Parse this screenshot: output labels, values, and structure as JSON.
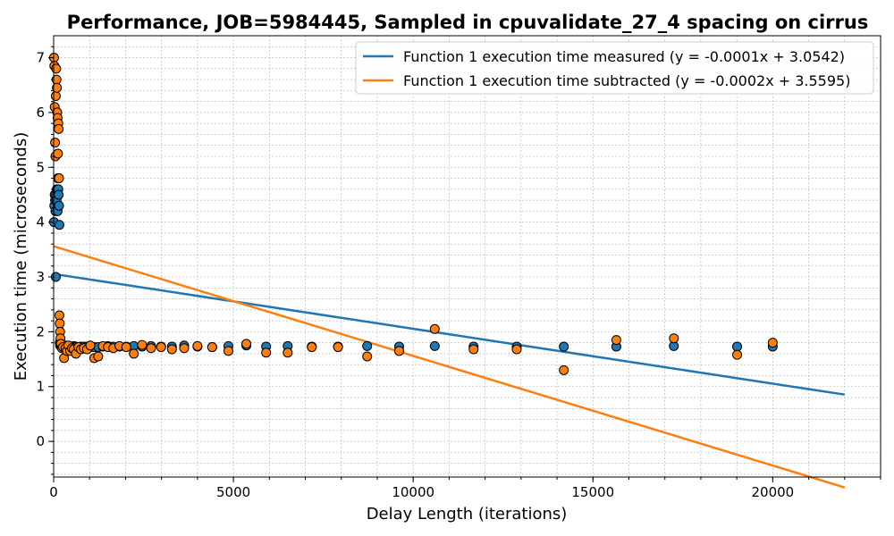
{
  "chart_data": {
    "type": "scatter",
    "title": "Performance, JOB=5984445, Sampled in cpuvalidate_27_4 spacing on cirrus",
    "xlabel": "Delay Length (iterations)",
    "ylabel": "Execution time (microseconds)",
    "xlim": [
      0,
      23000
    ],
    "ylim": [
      -0.65,
      7.4
    ],
    "x_ticks": [
      0,
      5000,
      10000,
      15000,
      20000
    ],
    "y_ticks": [
      0,
      1,
      2,
      3,
      4,
      5,
      6,
      7
    ],
    "grid": true,
    "legend_position": "top-right",
    "series": [
      {
        "name": "Function 1 execution time measured (y = -0.0001x + 3.0542)",
        "color": "#1f77b4",
        "x": [
          10,
          20,
          30,
          40,
          50,
          60,
          70,
          80,
          90,
          100,
          110,
          120,
          130,
          140,
          150,
          160,
          170,
          180,
          190,
          200,
          230,
          260,
          290,
          330,
          370,
          410,
          460,
          510,
          560,
          620,
          690,
          760,
          840,
          930,
          1020,
          1130,
          1240,
          1370,
          1510,
          1660,
          1830,
          2020,
          2230,
          2460,
          2710,
          2990,
          3290,
          3630,
          4000,
          4410,
          4860,
          5360,
          5910,
          6510,
          7180,
          7910,
          8720,
          9610,
          10600,
          11680,
          12880,
          14190,
          15650,
          17250,
          19010,
          20000
        ],
        "y": [
          4.0,
          4.3,
          4.5,
          4.4,
          4.2,
          3.0,
          4.5,
          4.4,
          4.6,
          4.6,
          4.2,
          4.8,
          4.6,
          4.5,
          4.3,
          3.95,
          1.8,
          1.75,
          1.75,
          1.75,
          1.72,
          1.72,
          1.73,
          1.75,
          1.74,
          1.72,
          1.72,
          1.73,
          1.74,
          1.73,
          1.72,
          1.73,
          1.73,
          1.73,
          1.72,
          1.72,
          1.72,
          1.73,
          1.74,
          1.73,
          1.73,
          1.73,
          1.74,
          1.73,
          1.74,
          1.73,
          1.73,
          1.75,
          1.73,
          1.72,
          1.74,
          1.75,
          1.73,
          1.74,
          1.73,
          1.73,
          1.74,
          1.73,
          1.74,
          1.73,
          1.73,
          1.73,
          1.73,
          1.74,
          1.73,
          1.73
        ],
        "fit": {
          "slope": -0.0001,
          "intercept": 3.0542,
          "x_range": [
            0,
            22000
          ]
        }
      },
      {
        "name": "Function 1 execution time subtracted (y = -0.0002x + 3.5595)",
        "color": "#ff7f0e",
        "x": [
          10,
          20,
          30,
          40,
          50,
          60,
          70,
          80,
          90,
          100,
          110,
          120,
          130,
          140,
          150,
          160,
          170,
          180,
          190,
          200,
          230,
          260,
          290,
          330,
          370,
          410,
          460,
          510,
          560,
          620,
          690,
          760,
          840,
          930,
          1020,
          1130,
          1240,
          1370,
          1510,
          1660,
          1830,
          2020,
          2230,
          2460,
          2710,
          2990,
          3290,
          3630,
          4000,
          4410,
          4860,
          5360,
          5910,
          6510,
          7180,
          7910,
          8720,
          9610,
          10600,
          11680,
          12880,
          14190,
          15650,
          17250,
          19010,
          20000
        ],
        "y": [
          7.0,
          6.85,
          6.1,
          5.45,
          5.2,
          6.3,
          6.8,
          6.6,
          6.45,
          6.0,
          5.9,
          5.25,
          5.8,
          5.7,
          4.8,
          2.3,
          2.15,
          2.0,
          1.88,
          1.78,
          1.7,
          1.72,
          1.52,
          1.7,
          1.65,
          1.75,
          1.65,
          1.7,
          1.68,
          1.6,
          1.72,
          1.68,
          1.7,
          1.68,
          1.75,
          1.52,
          1.55,
          1.74,
          1.72,
          1.7,
          1.74,
          1.72,
          1.6,
          1.76,
          1.7,
          1.72,
          1.68,
          1.7,
          1.74,
          1.72,
          1.65,
          1.78,
          1.62,
          1.62,
          1.72,
          1.72,
          1.55,
          1.65,
          2.05,
          1.68,
          1.68,
          1.3,
          1.85,
          1.88,
          1.58,
          1.8
        ],
        "fit": {
          "slope": -0.0002,
          "intercept": 3.5595,
          "x_range": [
            0,
            22000
          ]
        }
      }
    ]
  }
}
